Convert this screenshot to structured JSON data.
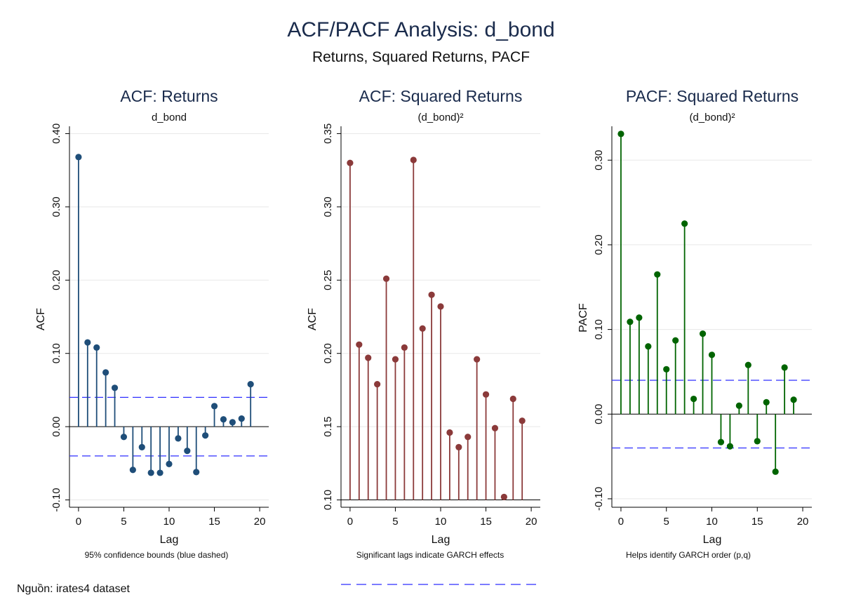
{
  "header": {
    "title": "ACF/PACF Analysis: d_bond",
    "subtitle": "Returns, Squared Returns, PACF"
  },
  "source_note": "Nguồn: irates4 dataset",
  "colors": {
    "title": "#1a2b4c",
    "acf_returns": "#1f4e79",
    "acf_squared": "#8b3a3a",
    "pacf_squared": "#006400",
    "confidence": "#2f2fff",
    "grid": "#e8e8e8"
  },
  "chart_data": [
    {
      "type": "stem",
      "title": "ACF: Returns",
      "subtitle": "d_bond",
      "xlabel": "Lag",
      "ylabel": "ACF",
      "note": "95% confidence bounds (blue dashed)",
      "x": [
        0,
        1,
        2,
        3,
        4,
        5,
        6,
        7,
        8,
        9,
        10,
        11,
        12,
        13,
        14,
        15,
        16,
        17,
        18,
        19
      ],
      "values": [
        0.368,
        0.115,
        0.108,
        0.074,
        0.053,
        -0.014,
        -0.059,
        -0.028,
        -0.063,
        -0.063,
        -0.051,
        -0.016,
        -0.033,
        -0.062,
        -0.012,
        0.028,
        0.01,
        0.006,
        0.011,
        0.058
      ],
      "xlim": [
        -1,
        21
      ],
      "ylim": [
        -0.11,
        0.41
      ],
      "baseline": 0,
      "xticks": [
        "0",
        "5",
        "10",
        "15",
        "20"
      ],
      "yticks": [
        "-0.10",
        "0.00",
        "0.10",
        "0.20",
        "0.30",
        "0.40"
      ],
      "confidence_bounds": [
        0.04,
        -0.04
      ],
      "grid": true,
      "color": "#1f4e79"
    },
    {
      "type": "stem",
      "title": "ACF: Squared Returns",
      "subtitle": "(d_bond)²",
      "xlabel": "Lag",
      "ylabel": "ACF",
      "note": "Significant lags indicate GARCH effects",
      "x": [
        0,
        1,
        2,
        3,
        4,
        5,
        6,
        7,
        8,
        9,
        10,
        11,
        12,
        13,
        14,
        15,
        16,
        17,
        18,
        19
      ],
      "values": [
        0.33,
        0.206,
        0.197,
        0.179,
        0.251,
        0.196,
        0.204,
        0.332,
        0.217,
        0.24,
        0.232,
        0.146,
        0.136,
        0.143,
        0.196,
        0.172,
        0.149,
        0.102,
        0.169,
        0.154
      ],
      "xlim": [
        -1,
        21
      ],
      "ylim": [
        0.095,
        0.355
      ],
      "baseline": 0.1,
      "xticks": [
        "0",
        "5",
        "10",
        "15",
        "20"
      ],
      "yticks": [
        "0.10",
        "0.15",
        "0.20",
        "0.25",
        "0.30",
        "0.35"
      ],
      "grid": true,
      "color": "#8b3a3a"
    },
    {
      "type": "stem",
      "title": "PACF: Squared Returns",
      "subtitle": "(d_bond)²",
      "xlabel": "Lag",
      "ylabel": "PACF",
      "note": "Helps identify GARCH order (p,q)",
      "x": [
        0,
        1,
        2,
        3,
        4,
        5,
        6,
        7,
        8,
        9,
        10,
        11,
        12,
        13,
        14,
        15,
        16,
        17,
        18,
        19
      ],
      "values": [
        0.331,
        0.109,
        0.114,
        0.08,
        0.165,
        0.053,
        0.087,
        0.225,
        0.018,
        0.095,
        0.07,
        -0.033,
        -0.038,
        0.01,
        0.058,
        -0.032,
        0.014,
        -0.068,
        0.055,
        0.017
      ],
      "xlim": [
        -1,
        21
      ],
      "ylim": [
        -0.11,
        0.34
      ],
      "baseline": 0,
      "xticks": [
        "0",
        "5",
        "10",
        "15",
        "20"
      ],
      "yticks": [
        "-0.10",
        "0.00",
        "0.10",
        "0.20",
        "0.30"
      ],
      "confidence_bounds": [
        0.04,
        -0.04
      ],
      "grid": true,
      "color": "#006400"
    }
  ]
}
